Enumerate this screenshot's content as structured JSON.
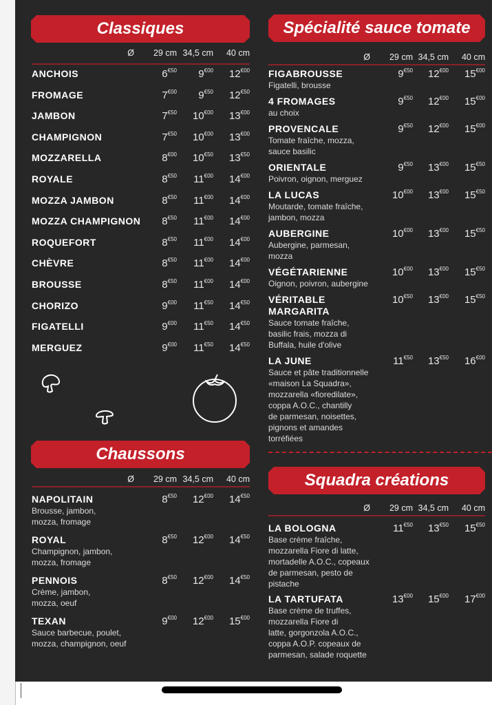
{
  "colors": {
    "background": "#272727",
    "accent": "#c3202a",
    "text": "#ffffff"
  },
  "sizes_header": {
    "diameter_symbol": "Ø",
    "small": "29 cm",
    "medium": "34,5 cm",
    "large": "40 cm"
  },
  "sections": [
    {
      "id": "classiques",
      "title": "Classiques",
      "items": [
        {
          "name": "ANCHOIS",
          "prices": [
            [
              "6",
              "€50"
            ],
            [
              "9",
              "€00"
            ],
            [
              "12",
              "€00"
            ]
          ]
        },
        {
          "name": "FROMAGE",
          "prices": [
            [
              "7",
              "€00"
            ],
            [
              "9",
              "€50"
            ],
            [
              "12",
              "€50"
            ]
          ]
        },
        {
          "name": "JAMBON",
          "prices": [
            [
              "7",
              "€50"
            ],
            [
              "10",
              "€00"
            ],
            [
              "13",
              "€00"
            ]
          ]
        },
        {
          "name": "CHAMPIGNON",
          "prices": [
            [
              "7",
              "€50"
            ],
            [
              "10",
              "€00"
            ],
            [
              "13",
              "€00"
            ]
          ]
        },
        {
          "name": "MOZZARELLA",
          "prices": [
            [
              "8",
              "€00"
            ],
            [
              "10",
              "€50"
            ],
            [
              "13",
              "€50"
            ]
          ]
        },
        {
          "name": "ROYALE",
          "prices": [
            [
              "8",
              "€50"
            ],
            [
              "11",
              "€00"
            ],
            [
              "14",
              "€00"
            ]
          ]
        },
        {
          "name": "MOZZA JAMBON",
          "prices": [
            [
              "8",
              "€50"
            ],
            [
              "11",
              "€00"
            ],
            [
              "14",
              "€00"
            ]
          ]
        },
        {
          "name": "MOZZA CHAMPIGNON",
          "prices": [
            [
              "8",
              "€50"
            ],
            [
              "11",
              "€00"
            ],
            [
              "14",
              "€00"
            ]
          ]
        },
        {
          "name": "ROQUEFORT",
          "prices": [
            [
              "8",
              "€50"
            ],
            [
              "11",
              "€00"
            ],
            [
              "14",
              "€00"
            ]
          ]
        },
        {
          "name": "CHÈVRE",
          "prices": [
            [
              "8",
              "€50"
            ],
            [
              "11",
              "€00"
            ],
            [
              "14",
              "€00"
            ]
          ]
        },
        {
          "name": "BROUSSE",
          "prices": [
            [
              "8",
              "€50"
            ],
            [
              "11",
              "€00"
            ],
            [
              "14",
              "€00"
            ]
          ]
        },
        {
          "name": "CHORIZO",
          "prices": [
            [
              "9",
              "€00"
            ],
            [
              "11",
              "€50"
            ],
            [
              "14",
              "€50"
            ]
          ]
        },
        {
          "name": "FIGATELLI",
          "prices": [
            [
              "9",
              "€00"
            ],
            [
              "11",
              "€50"
            ],
            [
              "14",
              "€50"
            ]
          ]
        },
        {
          "name": "MERGUEZ",
          "prices": [
            [
              "9",
              "€00"
            ],
            [
              "11",
              "€50"
            ],
            [
              "14",
              "€50"
            ]
          ]
        }
      ]
    },
    {
      "id": "chaussons",
      "title": "Chaussons",
      "items": [
        {
          "name": "NAPOLITAIN",
          "desc": "Brousse, jambon,\nmozza, fromage",
          "prices": [
            [
              "8",
              "€50"
            ],
            [
              "12",
              "€00"
            ],
            [
              "14",
              "€50"
            ]
          ]
        },
        {
          "name": "ROYAL",
          "desc": "Champignon, jambon,\nmozza, fromage",
          "prices": [
            [
              "8",
              "€50"
            ],
            [
              "12",
              "€00"
            ],
            [
              "14",
              "€50"
            ]
          ]
        },
        {
          "name": "PENNOIS",
          "desc": "Crème, jambon,\nmozza, oeuf",
          "prices": [
            [
              "8",
              "€50"
            ],
            [
              "12",
              "€00"
            ],
            [
              "14",
              "€50"
            ]
          ]
        },
        {
          "name": "TEXAN",
          "desc": "Sauce barbecue, poulet,\nmozza, champignon, oeuf",
          "prices": [
            [
              "9",
              "€00"
            ],
            [
              "12",
              "€00"
            ],
            [
              "15",
              "€00"
            ]
          ]
        }
      ]
    },
    {
      "id": "tomate",
      "title": "Spécialité sauce tomate",
      "items": [
        {
          "name": "FIGABROUSSE",
          "desc": "Figatelli, brousse",
          "prices": [
            [
              "9",
              "€50"
            ],
            [
              "12",
              "€00"
            ],
            [
              "15",
              "€00"
            ]
          ]
        },
        {
          "name": "4 FROMAGES",
          "desc": "au choix",
          "prices": [
            [
              "9",
              "€50"
            ],
            [
              "12",
              "€00"
            ],
            [
              "15",
              "€00"
            ]
          ]
        },
        {
          "name": "PROVENCALE",
          "desc": "Tomate fraîche, mozza,\nsauce basilic",
          "prices": [
            [
              "9",
              "€50"
            ],
            [
              "12",
              "€00"
            ],
            [
              "15",
              "€00"
            ]
          ]
        },
        {
          "name": "ORIENTALE",
          "desc": "Poivron, oignon, merguez",
          "prices": [
            [
              "9",
              "€50"
            ],
            [
              "13",
              "€00"
            ],
            [
              "15",
              "€50"
            ]
          ]
        },
        {
          "name": "LA LUCAS",
          "desc": "Moutarde, tomate fraîche,\njambon, mozza",
          "prices": [
            [
              "10",
              "€00"
            ],
            [
              "13",
              "€00"
            ],
            [
              "15",
              "€50"
            ]
          ]
        },
        {
          "name": "AUBERGINE",
          "desc": "Aubergine, parmesan,\nmozza",
          "prices": [
            [
              "10",
              "€00"
            ],
            [
              "13",
              "€00"
            ],
            [
              "15",
              "€50"
            ]
          ]
        },
        {
          "name": "VÉGÉTARIENNE",
          "desc": "Oignon, poivron, aubergine",
          "prices": [
            [
              "10",
              "€00"
            ],
            [
              "13",
              "€00"
            ],
            [
              "15",
              "€50"
            ]
          ]
        },
        {
          "name": "VÉRITABLE\nMARGARITA",
          "desc": "Sauce tomate fraîche,\nbasilic frais, mozza di\nBuffala, huile d'olive",
          "prices": [
            [
              "10",
              "€50"
            ],
            [
              "13",
              "€00"
            ],
            [
              "15",
              "€50"
            ]
          ]
        },
        {
          "name": "LA JUNE",
          "desc": "Sauce et pâte traditionnelle\n«maison La Squadra»,\nmozzarella «fioredilate»,\ncoppa A.O.C., chantilly\nde parmesan, noisettes,\npignons et amandes\ntorréfiées",
          "prices": [
            [
              "11",
              "€50"
            ],
            [
              "13",
              "€50"
            ],
            [
              "16",
              "€00"
            ]
          ]
        }
      ]
    },
    {
      "id": "squadra",
      "title": "Squadra créations",
      "items": [
        {
          "name": "LA BOLOGNA",
          "desc": "Base crème fraîche,\nmozzarella Fiore di latte,\nmortadelle A.O.C., copeaux\nde parmesan, pesto de\npistache",
          "prices": [
            [
              "11",
              "€50"
            ],
            [
              "13",
              "€50"
            ],
            [
              "15",
              "€50"
            ]
          ]
        },
        {
          "name": "LA TARTUFATA",
          "desc": "Base crème de truffes,\nmozzarella Fiore di\nlatte, gorgonzola A.O.C.,\ncoppa A.O.P. copeaux de\nparmesan, salade roquette",
          "prices": [
            [
              "13",
              "€00"
            ],
            [
              "15",
              "€00"
            ],
            [
              "17",
              "€00"
            ]
          ]
        }
      ]
    }
  ],
  "icons": [
    "mushroom-icon",
    "mushroom-icon",
    "tomato-icon"
  ]
}
